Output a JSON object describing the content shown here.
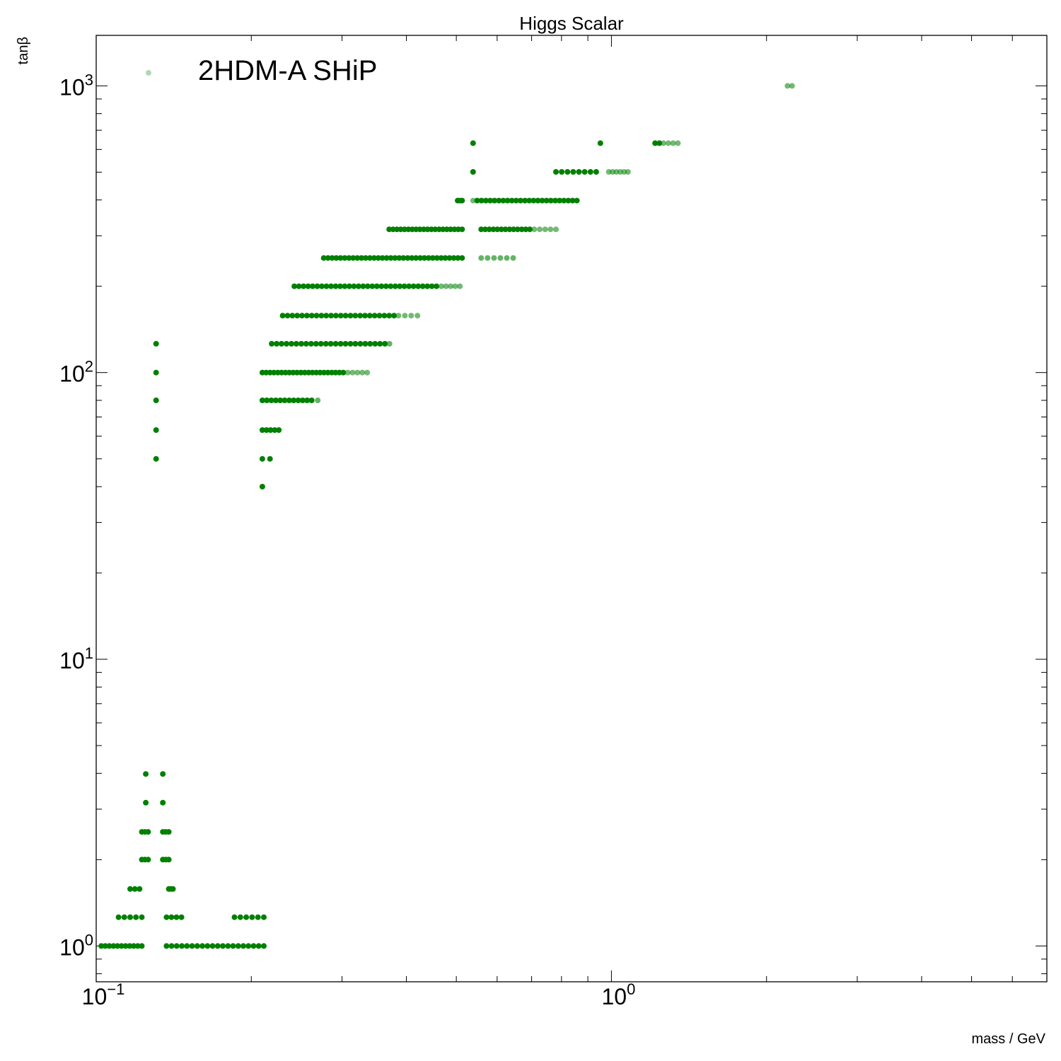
{
  "chart_data": {
    "type": "scatter",
    "title": "Higgs Scalar",
    "xlabel": "mass / GeV",
    "ylabel": "tanβ",
    "xscale": "log",
    "yscale": "log",
    "xlim": [
      0.1,
      7.0
    ],
    "ylim": [
      0.75,
      1500
    ],
    "grid": false,
    "legend_position": "top-left",
    "series": [
      {
        "name": "2HDM-A SHiP",
        "color": "#008000",
        "marker": "circle",
        "rows": [
          {
            "y": 1.0,
            "x_start": 0.1023,
            "x_end": 0.1226,
            "n": 11
          },
          {
            "y": 1.0,
            "x_start": 0.1369,
            "x_end": 0.2115,
            "n": 20
          },
          {
            "y": 1.26,
            "x_start": 0.1105,
            "x_end": 0.1226,
            "n": 5
          },
          {
            "y": 1.26,
            "x_start": 0.1369,
            "x_end": 0.1464,
            "n": 4
          },
          {
            "y": 1.26,
            "x_start": 0.1855,
            "x_end": 0.2115,
            "n": 6
          },
          {
            "y": 1.58,
            "x_start": 0.1164,
            "x_end": 0.1214,
            "n": 3
          },
          {
            "y": 1.58,
            "x_start": 0.1383,
            "x_end": 0.1409,
            "n": 3
          },
          {
            "y": 2.0,
            "x_start": 0.1226,
            "x_end": 0.1261,
            "n": 3
          },
          {
            "y": 2.0,
            "x_start": 0.1347,
            "x_end": 0.1383,
            "n": 3
          },
          {
            "y": 2.5,
            "x_start": 0.1226,
            "x_end": 0.1261,
            "n": 3
          },
          {
            "y": 2.5,
            "x_start": 0.1347,
            "x_end": 0.1383,
            "n": 3
          },
          {
            "y": 3.16,
            "x_start": 0.1248,
            "x_end": 0.1248,
            "n": 1
          },
          {
            "y": 3.16,
            "x_start": 0.1347,
            "x_end": 0.1347,
            "n": 1
          },
          {
            "y": 3.98,
            "x_start": 0.1248,
            "x_end": 0.1248,
            "n": 1
          },
          {
            "y": 3.98,
            "x_start": 0.1347,
            "x_end": 0.1347,
            "n": 1
          },
          {
            "y": 50,
            "x_start": 0.1307,
            "x_end": 0.1307,
            "n": 1
          },
          {
            "y": 63,
            "x_start": 0.1307,
            "x_end": 0.1307,
            "n": 1
          },
          {
            "y": 80,
            "x_start": 0.1307,
            "x_end": 0.1307,
            "n": 1
          },
          {
            "y": 100,
            "x_start": 0.1307,
            "x_end": 0.1307,
            "n": 1
          },
          {
            "y": 126,
            "x_start": 0.1307,
            "x_end": 0.1307,
            "n": 1
          },
          {
            "y": 40,
            "x_start": 0.2101,
            "x_end": 0.2101,
            "n": 1
          },
          {
            "y": 50,
            "x_start": 0.2101,
            "x_end": 0.2174,
            "n": 2
          },
          {
            "y": 63,
            "x_start": 0.2101,
            "x_end": 0.2262,
            "n": 5
          },
          {
            "y": 80,
            "x_start": 0.2101,
            "x_end": 0.2619,
            "n": 12
          },
          {
            "y": 80,
            "x_start": 0.2691,
            "x_end": 0.2691,
            "n": 1,
            "alpha": 0.6
          },
          {
            "y": 100,
            "x_start": 0.2101,
            "x_end": 0.3017,
            "n": 22
          },
          {
            "y": 100,
            "x_start": 0.3077,
            "x_end": 0.3357,
            "n": 5,
            "alpha": 0.55
          },
          {
            "y": 126,
            "x_start": 0.2191,
            "x_end": 0.3634,
            "n": 24
          },
          {
            "y": 126,
            "x_start": 0.371,
            "x_end": 0.371,
            "n": 1,
            "alpha": 0.6
          },
          {
            "y": 158,
            "x_start": 0.2301,
            "x_end": 0.3785,
            "n": 24
          },
          {
            "y": 158,
            "x_start": 0.3862,
            "x_end": 0.4203,
            "n": 4,
            "alpha": 0.55
          },
          {
            "y": 200,
            "x_start": 0.2424,
            "x_end": 0.4576,
            "n": 32
          },
          {
            "y": 200,
            "x_start": 0.4675,
            "x_end": 0.5081,
            "n": 5,
            "alpha": 0.55
          },
          {
            "y": 251,
            "x_start": 0.2765,
            "x_end": 0.5131,
            "n": 34
          },
          {
            "y": 251,
            "x_start": 0.5587,
            "x_end": 0.6447,
            "n": 6,
            "alpha": 0.6
          },
          {
            "y": 316,
            "x_start": 0.3704,
            "x_end": 0.5131,
            "n": 20
          },
          {
            "y": 316,
            "x_start": 0.5587,
            "x_end": 0.6944,
            "n": 13
          },
          {
            "y": 316,
            "x_start": 0.7083,
            "x_end": 0.7805,
            "n": 5,
            "alpha": 0.55
          },
          {
            "y": 398,
            "x_start": 0.503,
            "x_end": 0.5131,
            "n": 3
          },
          {
            "y": 398,
            "x_start": 0.5389,
            "x_end": 0.5389,
            "n": 1,
            "alpha": 0.55
          },
          {
            "y": 398,
            "x_start": 0.5488,
            "x_end": 0.8571,
            "n": 24
          },
          {
            "y": 501,
            "x_start": 0.5389,
            "x_end": 0.5389,
            "n": 1
          },
          {
            "y": 501,
            "x_start": 0.7805,
            "x_end": 0.9342,
            "n": 8
          },
          {
            "y": 501,
            "x_start": 0.9884,
            "x_end": 1.0766,
            "n": 6,
            "alpha": 0.55
          },
          {
            "y": 631,
            "x_start": 0.5389,
            "x_end": 0.5389,
            "n": 1
          },
          {
            "y": 631,
            "x_start": 0.9517,
            "x_end": 0.9517,
            "n": 1
          },
          {
            "y": 631,
            "x_start": 1.2157,
            "x_end": 1.2389,
            "n": 2
          },
          {
            "y": 631,
            "x_start": 1.2616,
            "x_end": 1.346,
            "n": 4,
            "alpha": 0.55
          },
          {
            "y": 1000,
            "x_start": 2.1961,
            "x_end": 2.2417,
            "n": 2,
            "alpha": 0.55
          }
        ]
      }
    ],
    "x_ticks": [
      {
        "value": 0.1,
        "base": "10",
        "exp": "−1"
      },
      {
        "value": 1,
        "base": "10",
        "exp": "0"
      }
    ],
    "y_ticks": [
      {
        "value": 1,
        "base": "10",
        "exp": "0"
      },
      {
        "value": 10,
        "base": "10",
        "exp": "1"
      },
      {
        "value": 100,
        "base": "10",
        "exp": "2"
      },
      {
        "value": 1000,
        "base": "10",
        "exp": "3"
      }
    ]
  }
}
